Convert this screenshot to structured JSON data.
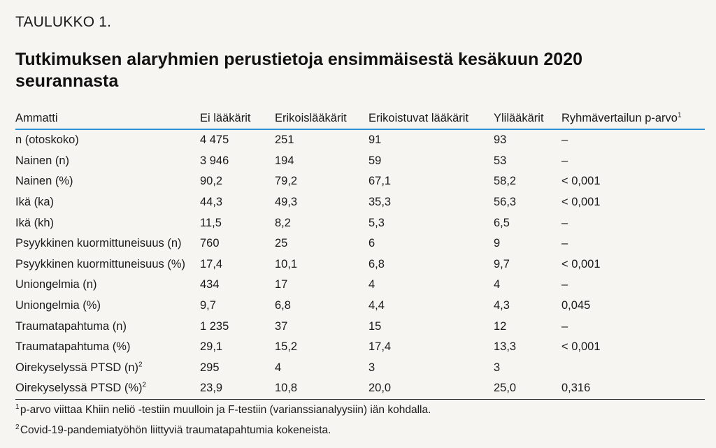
{
  "label": "TAULUKKO 1.",
  "title": "Tutkimuksen alaryhmien perustietoja ensimmäisestä kesäkuun 2020 seurannasta",
  "columns": [
    "Ammatti",
    "Ei lääkärit",
    "Erikoislääkärit",
    "Erikoistuvat lääkärit",
    "Ylilääkärit",
    "Ryhmävertailun p-arvo"
  ],
  "column_sup": "1",
  "rows": [
    {
      "label": "n (otoskoko)",
      "sup": "",
      "values": [
        "4 475",
        "251",
        "91",
        "93",
        "–"
      ]
    },
    {
      "label": "Nainen (n)",
      "sup": "",
      "values": [
        "3 946",
        "194",
        "59",
        "53",
        "–"
      ]
    },
    {
      "label": "Nainen (%)",
      "sup": "",
      "values": [
        "90,2",
        "79,2",
        "67,1",
        "58,2",
        "< 0,001"
      ]
    },
    {
      "label": "Ikä (ka)",
      "sup": "",
      "values": [
        "44,3",
        "49,3",
        "35,3",
        "56,3",
        "< 0,001"
      ]
    },
    {
      "label": "Ikä (kh)",
      "sup": "",
      "values": [
        "11,5",
        "8,2",
        "5,3",
        "6,5",
        "–"
      ]
    },
    {
      "label": "Psyykkinen kuormittuneisuus (n)",
      "sup": "",
      "values": [
        "760",
        "25",
        "6",
        "9",
        "–"
      ]
    },
    {
      "label": "Psyykkinen kuormittuneisuus (%)",
      "sup": "",
      "values": [
        "17,4",
        "10,1",
        "6,8",
        "9,7",
        "< 0,001"
      ]
    },
    {
      "label": "Uniongelmia (n)",
      "sup": "",
      "values": [
        "434",
        "17",
        "4",
        "4",
        "–"
      ]
    },
    {
      "label": "Uniongelmia (%)",
      "sup": "",
      "values": [
        "9,7",
        "6,8",
        "4,4",
        "4,3",
        "0,045"
      ]
    },
    {
      "label": "Traumatapahtuma (n)",
      "sup": "",
      "values": [
        "1 235",
        "37",
        "15",
        "12",
        "–"
      ]
    },
    {
      "label": "Traumatapahtuma (%)",
      "sup": "",
      "values": [
        "29,1",
        "15,2",
        "17,4",
        "13,3",
        "< 0,001"
      ]
    },
    {
      "label": "Oirekyselyssä PTSD (n)",
      "sup": "2",
      "values": [
        "295",
        "4",
        "3",
        "3",
        ""
      ]
    },
    {
      "label": "Oirekyselyssä PTSD (%)",
      "sup": "2",
      "values": [
        "23,9",
        "10,8",
        "20,0",
        "25,0",
        "0,316"
      ]
    }
  ],
  "footnotes": [
    {
      "mark": "1",
      "text": "p-arvo viittaa Khiin neliö -testiin muulloin ja F-testiin (varianssianalyysiin) iän kohdalla."
    },
    {
      "mark": "2",
      "text": "Covid-19-pandemiatyöhön liittyviä traumatapahtumia kokeneista."
    }
  ],
  "colors": {
    "accent_rule": "#2b8fd6",
    "background": "#f7f5f1",
    "text": "#1a1a1a"
  }
}
